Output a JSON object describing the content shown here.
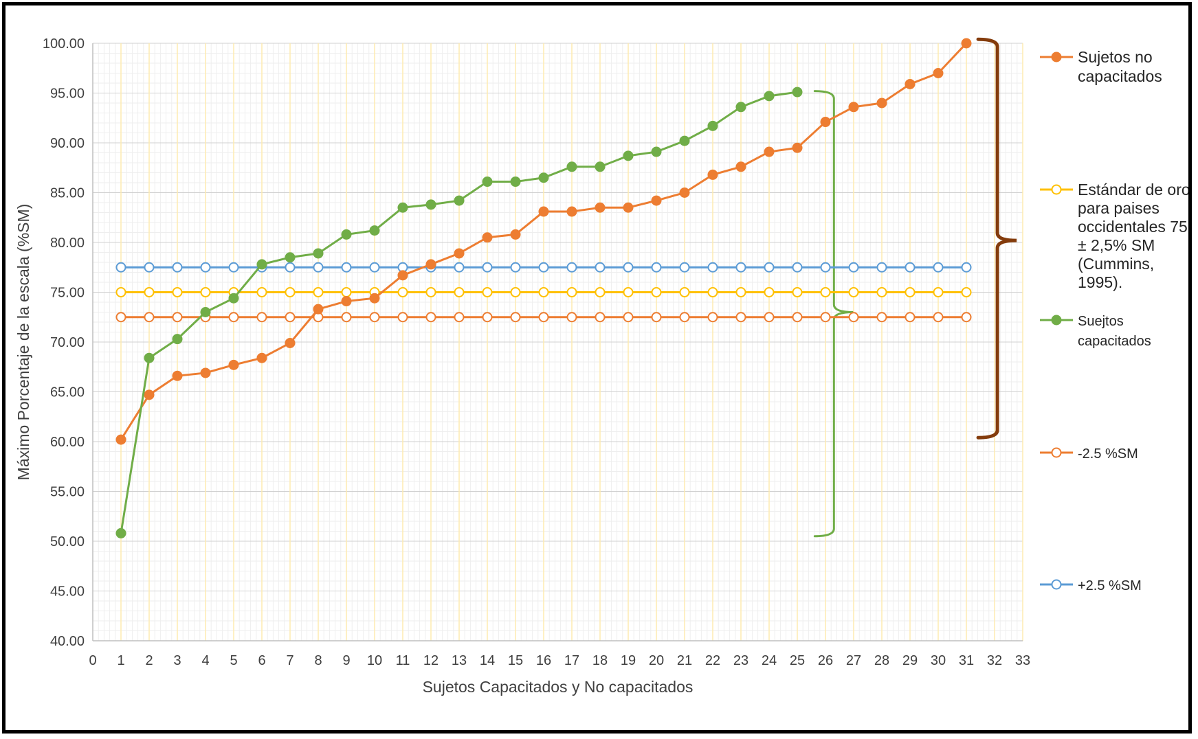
{
  "chart_data": {
    "type": "line",
    "title": "",
    "xlabel": "Sujetos Capacitados y No capacitados",
    "ylabel": "Máximo Porcentaje de la escala (%SM)",
    "xlim": [
      0,
      33
    ],
    "ylim": [
      40,
      100
    ],
    "x_ticks": [
      "0",
      "1",
      "2",
      "3",
      "4",
      "5",
      "6",
      "7",
      "8",
      "9",
      "10",
      "11",
      "12",
      "13",
      "14",
      "15",
      "16",
      "17",
      "18",
      "19",
      "20",
      "21",
      "22",
      "23",
      "24",
      "25",
      "26",
      "27",
      "28",
      "29",
      "30",
      "31",
      "32",
      "33"
    ],
    "y_ticks": [
      "40.00",
      "45.00",
      "50.00",
      "55.00",
      "60.00",
      "65.00",
      "70.00",
      "75.00",
      "80.00",
      "85.00",
      "90.00",
      "95.00",
      "100.00"
    ],
    "grid": true,
    "legend_position": "right",
    "series": [
      {
        "key": "no_capacitados",
        "name": "Sujetos no capacitados",
        "legend_lines": [
          "Sujetos no",
          "capacitados"
        ],
        "color": "#ED7D31",
        "marker": "filled",
        "x": [
          1,
          2,
          3,
          4,
          5,
          6,
          7,
          8,
          9,
          10,
          11,
          12,
          13,
          14,
          15,
          16,
          17,
          18,
          19,
          20,
          21,
          22,
          23,
          24,
          25,
          26,
          27,
          28,
          29,
          30,
          31
        ],
        "values": [
          60.2,
          64.7,
          66.6,
          66.9,
          67.7,
          68.4,
          69.9,
          73.3,
          74.1,
          74.4,
          76.7,
          77.8,
          78.9,
          80.5,
          80.8,
          83.1,
          83.1,
          83.5,
          83.5,
          84.2,
          85.0,
          86.8,
          87.6,
          89.1,
          89.5,
          92.1,
          93.6,
          94.0,
          95.9,
          97.0,
          100.0
        ]
      },
      {
        "key": "estandar",
        "name": "Estándar de oro para paises occidentales 75 ± 2,5% SM (Cummins, 1995).",
        "legend_lines": [
          "Estándar de oro",
          "para paises",
          "occidentales 75",
          "± 2,5% SM",
          "(Cummins,",
          "1995)."
        ],
        "color": "#FFC000",
        "marker": "hollow",
        "x": [
          1,
          2,
          3,
          4,
          5,
          6,
          7,
          8,
          9,
          10,
          11,
          12,
          13,
          14,
          15,
          16,
          17,
          18,
          19,
          20,
          21,
          22,
          23,
          24,
          25,
          26,
          27,
          28,
          29,
          30,
          31
        ],
        "values": [
          75,
          75,
          75,
          75,
          75,
          75,
          75,
          75,
          75,
          75,
          75,
          75,
          75,
          75,
          75,
          75,
          75,
          75,
          75,
          75,
          75,
          75,
          75,
          75,
          75,
          75,
          75,
          75,
          75,
          75,
          75
        ]
      },
      {
        "key": "capacitados",
        "name": "Suejtos capacitados",
        "legend_lines": [
          "Suejtos",
          "capacitados"
        ],
        "color": "#70AD47",
        "marker": "filled",
        "x": [
          1,
          2,
          3,
          4,
          5,
          6,
          7,
          8,
          9,
          10,
          11,
          12,
          13,
          14,
          15,
          16,
          17,
          18,
          19,
          20,
          21,
          22,
          23,
          24,
          25
        ],
        "values": [
          50.8,
          68.4,
          70.3,
          73.0,
          74.4,
          77.8,
          78.5,
          78.9,
          80.8,
          81.2,
          83.5,
          83.8,
          84.2,
          86.1,
          86.1,
          86.5,
          87.6,
          87.6,
          88.7,
          89.1,
          90.2,
          91.7,
          93.6,
          94.7,
          95.1
        ]
      },
      {
        "key": "minus",
        "name": "-2.5 %SM",
        "legend_lines": [
          "-2.5 %SM"
        ],
        "color": "#ED7D31",
        "marker": "hollow",
        "x": [
          1,
          2,
          3,
          4,
          5,
          6,
          7,
          8,
          9,
          10,
          11,
          12,
          13,
          14,
          15,
          16,
          17,
          18,
          19,
          20,
          21,
          22,
          23,
          24,
          25,
          26,
          27,
          28,
          29,
          30,
          31
        ],
        "values": [
          72.5,
          72.5,
          72.5,
          72.5,
          72.5,
          72.5,
          72.5,
          72.5,
          72.5,
          72.5,
          72.5,
          72.5,
          72.5,
          72.5,
          72.5,
          72.5,
          72.5,
          72.5,
          72.5,
          72.5,
          72.5,
          72.5,
          72.5,
          72.5,
          72.5,
          72.5,
          72.5,
          72.5,
          72.5,
          72.5,
          72.5
        ]
      },
      {
        "key": "plus",
        "name": "+2.5 %SM",
        "legend_lines": [
          "+2.5 %SM"
        ],
        "color": "#5B9BD5",
        "marker": "hollow",
        "x": [
          1,
          2,
          3,
          4,
          5,
          6,
          7,
          8,
          9,
          10,
          11,
          12,
          13,
          14,
          15,
          16,
          17,
          18,
          19,
          20,
          21,
          22,
          23,
          24,
          25,
          26,
          27,
          28,
          29,
          30,
          31
        ],
        "values": [
          77.5,
          77.5,
          77.5,
          77.5,
          77.5,
          77.5,
          77.5,
          77.5,
          77.5,
          77.5,
          77.5,
          77.5,
          77.5,
          77.5,
          77.5,
          77.5,
          77.5,
          77.5,
          77.5,
          77.5,
          77.5,
          77.5,
          77.5,
          77.5,
          77.5,
          77.5,
          77.5,
          77.5,
          77.5,
          77.5,
          77.5
        ]
      }
    ],
    "annotations": [
      {
        "type": "brace",
        "color": "#70AD47",
        "x": 26.3,
        "from": 50.5,
        "to": 95.2,
        "tip": 73
      },
      {
        "type": "brace",
        "color": "#843C0C",
        "x": 32.1,
        "from": 60.4,
        "to": 100.4,
        "tip": 80.2
      }
    ]
  }
}
